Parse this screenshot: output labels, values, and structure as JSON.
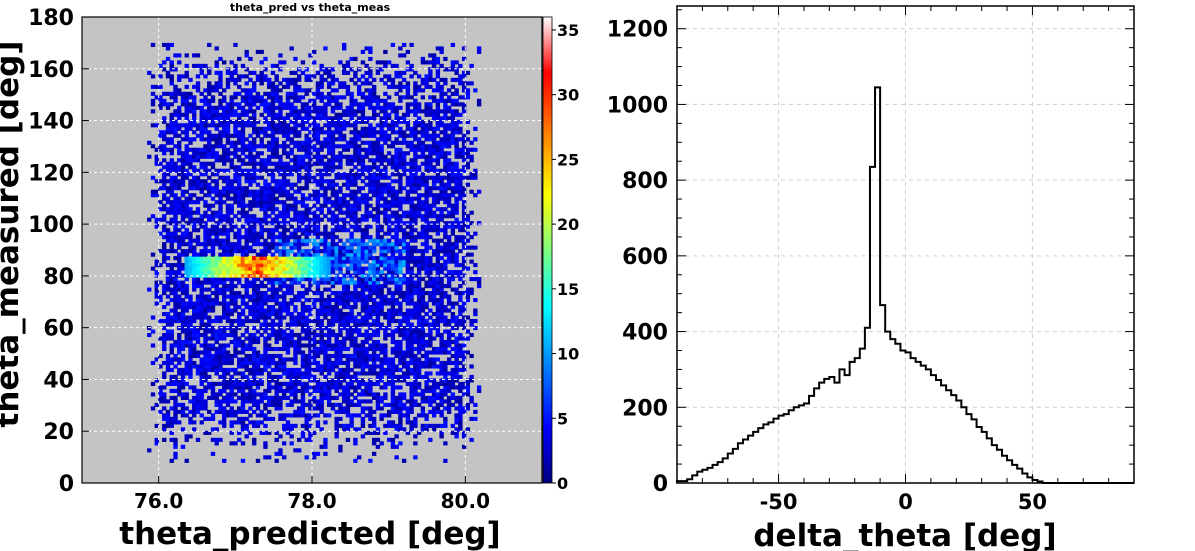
{
  "chart_data": [
    {
      "type": "heatmap",
      "title": "theta_pred vs theta_meas",
      "xlabel": "theta_predicted  [deg]",
      "ylabel": "theta_measured [deg]",
      "xlim": [
        75.0,
        81.0
      ],
      "ylim": [
        0,
        180
      ],
      "x_ticks": [
        "76.0",
        "78.0",
        "80.0"
      ],
      "y_ticks": [
        "0",
        "20",
        "40",
        "60",
        "80",
        "100",
        "120",
        "140",
        "160",
        "180"
      ],
      "grid": true,
      "background_color": "#c4c4c4",
      "colorbar": {
        "range": [
          0,
          36
        ],
        "ticks": [
          "0",
          "5",
          "10",
          "15",
          "20",
          "25",
          "30",
          "35"
        ]
      },
      "colormap": [
        "#00007f",
        "#0000ff",
        "#00ffff",
        "#ffff00",
        "#ff0000",
        "#7f0000"
      ],
      "data_x_range": [
        75.8,
        80.2
      ],
      "data_y_range": [
        8,
        170
      ],
      "hotspot": {
        "x_range": [
          76.3,
          78.2
        ],
        "y": 83,
        "peak": 33
      }
    },
    {
      "type": "histogram",
      "title": "",
      "xlabel": "delta_theta [deg]",
      "ylabel": "",
      "xlim": [
        -90,
        90
      ],
      "ylim": [
        0,
        1260
      ],
      "x_ticks": [
        "-50",
        "0",
        "50"
      ],
      "y_ticks": [
        "0",
        "200",
        "400",
        "600",
        "800",
        "1000",
        "1200"
      ],
      "grid": true,
      "bin_width": 2,
      "bin_edges_start": -90,
      "values": [
        5,
        5,
        10,
        20,
        30,
        35,
        40,
        48,
        55,
        65,
        78,
        90,
        105,
        115,
        125,
        135,
        145,
        155,
        160,
        170,
        178,
        182,
        192,
        200,
        205,
        210,
        230,
        250,
        265,
        275,
        280,
        265,
        300,
        285,
        320,
        330,
        355,
        410,
        835,
        1045,
        470,
        400,
        380,
        368,
        350,
        345,
        330,
        320,
        310,
        300,
        285,
        272,
        258,
        245,
        232,
        218,
        200,
        182,
        168,
        148,
        135,
        118,
        100,
        88,
        72,
        60,
        48,
        38,
        25,
        15,
        8,
        4,
        0,
        0,
        0,
        0,
        0,
        0,
        0,
        0,
        0,
        0,
        0,
        0,
        0,
        0,
        0,
        0,
        0,
        0
      ]
    }
  ]
}
